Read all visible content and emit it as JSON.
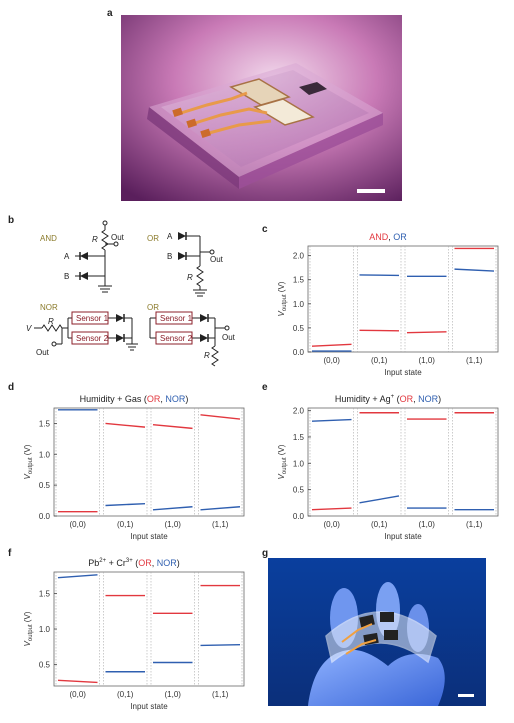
{
  "figure": {
    "letters": {
      "a": "a",
      "b": "b",
      "c": "c",
      "d": "d",
      "e": "e",
      "f": "f",
      "g": "g"
    }
  },
  "circuits": {
    "and_label": "AND",
    "or_label": "OR",
    "nor_label": "NOR",
    "or2_label": "OR",
    "input_a": "A",
    "input_b": "B",
    "resistor": "R",
    "out": "Out",
    "voltage": "V",
    "sensor1": "Sensor 1",
    "sensor2": "Sensor 2"
  },
  "colors": {
    "red": "#e2383f",
    "blue": "#2f5fb0",
    "circuit_label": "#8a7a2a",
    "sensor_box": "#8b1f2a"
  },
  "chart_data": [
    {
      "panel": "c",
      "type": "line",
      "title_parts": [
        {
          "text": "AND",
          "color": "red"
        },
        {
          "text": ", ",
          "color": "none"
        },
        {
          "text": "OR",
          "color": "blue"
        }
      ],
      "ylabel": "V_output (V)",
      "xlabel": "Input state",
      "categories": [
        "(0,0)",
        "(0,1)",
        "(1,0)",
        "(1,1)"
      ],
      "ylim": [
        0,
        2.2
      ],
      "yticks": [
        "0.0",
        "0.5",
        "1.0",
        "1.5",
        "2.0"
      ],
      "yticks_values": [
        0,
        0.5,
        1.0,
        1.5,
        2.0
      ],
      "series": [
        {
          "color": "red",
          "segments": [
            [
              0.12,
              0.16
            ],
            [
              0.45,
              0.44
            ],
            [
              0.4,
              0.42
            ],
            [
              2.15,
              2.15
            ]
          ]
        },
        {
          "color": "blue",
          "segments": [
            [
              0.02,
              0.02
            ],
            [
              1.6,
              1.59
            ],
            [
              1.57,
              1.57
            ],
            [
              1.72,
              1.68
            ]
          ]
        }
      ]
    },
    {
      "panel": "d",
      "type": "line",
      "title_parts": [
        {
          "text": "Humidity + Gas (",
          "color": "none"
        },
        {
          "text": "OR",
          "color": "red"
        },
        {
          "text": ", ",
          "color": "none"
        },
        {
          "text": "NOR",
          "color": "blue"
        },
        {
          "text": ")",
          "color": "none"
        }
      ],
      "ylabel": "V_output (V)",
      "xlabel": "Input state",
      "categories": [
        "(0,0)",
        "(0,1)",
        "(1,0)",
        "(1,1)"
      ],
      "ylim": [
        0,
        1.75
      ],
      "yticks": [
        "0.0",
        "0.5",
        "1.0",
        "1.5"
      ],
      "yticks_values": [
        0,
        0.5,
        1.0,
        1.5
      ],
      "series": [
        {
          "color": "red",
          "segments": [
            [
              0.07,
              0.07
            ],
            [
              1.5,
              1.44
            ],
            [
              1.48,
              1.42
            ],
            [
              1.64,
              1.57
            ]
          ]
        },
        {
          "color": "blue",
          "segments": [
            [
              1.72,
              1.72
            ],
            [
              0.17,
              0.2
            ],
            [
              0.1,
              0.15
            ],
            [
              0.1,
              0.15
            ]
          ]
        }
      ]
    },
    {
      "panel": "e",
      "type": "line",
      "title_parts": [
        {
          "text": "Humidity + Ag",
          "color": "none"
        },
        {
          "text": "+",
          "color": "none",
          "sup": true
        },
        {
          "text": " (",
          "color": "none"
        },
        {
          "text": "OR",
          "color": "red"
        },
        {
          "text": ", ",
          "color": "none"
        },
        {
          "text": "NOR",
          "color": "blue"
        },
        {
          "text": ")",
          "color": "none"
        }
      ],
      "ylabel": "V_output (V)",
      "xlabel": "Input state",
      "categories": [
        "(0,0)",
        "(0,1)",
        "(1,0)",
        "(1,1)"
      ],
      "ylim": [
        0,
        2.05
      ],
      "yticks": [
        "0.0",
        "0.5",
        "1.0",
        "1.5",
        "2.0"
      ],
      "yticks_values": [
        0,
        0.5,
        1.0,
        1.5,
        2.0
      ],
      "series": [
        {
          "color": "red",
          "segments": [
            [
              0.12,
              0.15
            ],
            [
              1.96,
              1.96
            ],
            [
              1.84,
              1.84
            ],
            [
              1.96,
              1.96
            ]
          ]
        },
        {
          "color": "blue",
          "segments": [
            [
              1.8,
              1.83
            ],
            [
              0.25,
              0.38
            ],
            [
              0.15,
              0.15
            ],
            [
              0.12,
              0.12
            ]
          ]
        }
      ]
    },
    {
      "panel": "f",
      "type": "line",
      "title_parts": [
        {
          "text": "Pb",
          "color": "none"
        },
        {
          "text": "2+",
          "color": "none",
          "sup": true
        },
        {
          "text": " + Cr",
          "color": "none"
        },
        {
          "text": "3+",
          "color": "none",
          "sup": true
        },
        {
          "text": " (",
          "color": "none"
        },
        {
          "text": "OR",
          "color": "red"
        },
        {
          "text": ", ",
          "color": "none"
        },
        {
          "text": "NOR",
          "color": "blue"
        },
        {
          "text": ")",
          "color": "none"
        }
      ],
      "ylabel": "V_output (V)",
      "xlabel": "Input state",
      "categories": [
        "(0,0)",
        "(0,1)",
        "(1,0)",
        "(1,1)"
      ],
      "ylim": [
        0.2,
        1.8
      ],
      "yticks": [
        "0.5",
        "1.0",
        "1.5"
      ],
      "yticks_values": [
        0.5,
        1.0,
        1.5
      ],
      "series": [
        {
          "color": "red",
          "segments": [
            [
              0.28,
              0.25
            ],
            [
              1.47,
              1.47
            ],
            [
              1.22,
              1.22
            ],
            [
              1.61,
              1.61
            ]
          ]
        },
        {
          "color": "blue",
          "segments": [
            [
              1.72,
              1.76
            ],
            [
              0.4,
              0.4
            ],
            [
              0.53,
              0.53
            ],
            [
              0.77,
              0.78
            ]
          ]
        }
      ]
    }
  ]
}
